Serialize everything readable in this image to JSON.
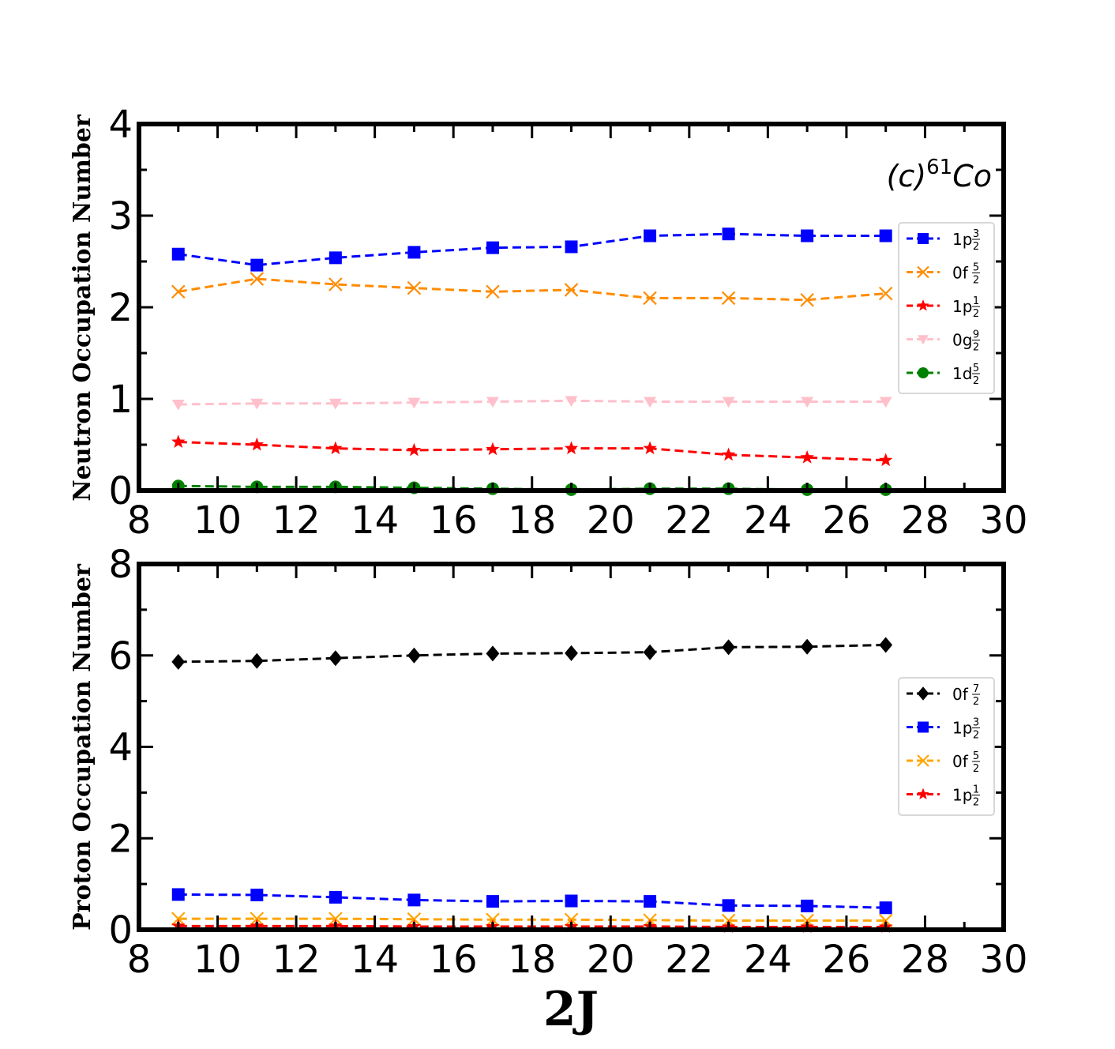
{
  "chart_data": [
    {
      "type": "line",
      "ylabel": "Neutron Occupation Number",
      "xlabel": "",
      "xlim": [
        8,
        30
      ],
      "ylim": [
        0,
        4
      ],
      "xticks": [
        "8",
        "10",
        "12",
        "14",
        "16",
        "18",
        "20",
        "22",
        "24",
        "26",
        "28",
        "30"
      ],
      "yticks": [
        "0",
        "1",
        "2",
        "3",
        "4"
      ],
      "annotation": {
        "label": "(c)",
        "sup": "61",
        "nucleus": "Co"
      },
      "legend_position": "right",
      "x": [
        9,
        11,
        13,
        15,
        17,
        19,
        21,
        23,
        25,
        27
      ],
      "series": [
        {
          "name": "1p 3/2",
          "orbital": "1p",
          "num": "3",
          "den": "2",
          "color": "#0000ff",
          "marker": "square",
          "values": [
            2.58,
            2.46,
            2.54,
            2.6,
            2.65,
            2.66,
            2.78,
            2.8,
            2.78,
            2.78
          ]
        },
        {
          "name": "0f 5/2",
          "orbital": "0f",
          "num": "5",
          "den": "2",
          "color": "#ff8c00",
          "marker": "x",
          "values": [
            2.17,
            2.31,
            2.25,
            2.21,
            2.17,
            2.19,
            2.1,
            2.1,
            2.08,
            2.15
          ]
        },
        {
          "name": "1p 1/2",
          "orbital": "1p",
          "num": "1",
          "den": "2",
          "color": "#ff0000",
          "marker": "star",
          "values": [
            0.53,
            0.5,
            0.46,
            0.44,
            0.45,
            0.46,
            0.46,
            0.39,
            0.36,
            0.33
          ]
        },
        {
          "name": "0g 9/2",
          "orbital": "0g",
          "num": "9",
          "den": "2",
          "color": "#ffc0cb",
          "marker": "triangle-down",
          "values": [
            0.94,
            0.95,
            0.95,
            0.96,
            0.97,
            0.98,
            0.97,
            0.97,
            0.97,
            0.97
          ]
        },
        {
          "name": "1d 5/2",
          "orbital": "1d",
          "num": "5",
          "den": "2",
          "color": "#008000",
          "marker": "circle",
          "values": [
            0.05,
            0.04,
            0.04,
            0.03,
            0.02,
            0.01,
            0.02,
            0.02,
            0.01,
            0.01
          ]
        }
      ]
    },
    {
      "type": "line",
      "ylabel": "Proton Occupation Number",
      "xlabel": "2J",
      "xlim": [
        8,
        30
      ],
      "ylim": [
        0,
        8
      ],
      "xticks": [
        "8",
        "10",
        "12",
        "14",
        "16",
        "18",
        "20",
        "22",
        "24",
        "26",
        "28",
        "30"
      ],
      "yticks": [
        "0",
        "2",
        "4",
        "6",
        "8"
      ],
      "legend_position": "right",
      "x": [
        9,
        11,
        13,
        15,
        17,
        19,
        21,
        23,
        25,
        27
      ],
      "series": [
        {
          "name": "0f 7/2",
          "orbital": "0f",
          "num": "7",
          "den": "2",
          "color": "#000000",
          "marker": "diamond",
          "values": [
            5.86,
            5.88,
            5.94,
            6.0,
            6.04,
            6.05,
            6.07,
            6.18,
            6.19,
            6.23
          ]
        },
        {
          "name": "1p 3/2",
          "orbital": "1p",
          "num": "3",
          "den": "2",
          "color": "#0000ff",
          "marker": "square",
          "values": [
            0.77,
            0.76,
            0.71,
            0.65,
            0.62,
            0.63,
            0.62,
            0.53,
            0.52,
            0.48
          ]
        },
        {
          "name": "0f 5/2",
          "orbital": "0f",
          "num": "5",
          "den": "2",
          "color": "#ffa500",
          "marker": "x",
          "values": [
            0.24,
            0.24,
            0.24,
            0.23,
            0.22,
            0.22,
            0.21,
            0.2,
            0.2,
            0.2
          ]
        },
        {
          "name": "1p 1/2",
          "orbital": "1p",
          "num": "1",
          "den": "2",
          "color": "#ff0000",
          "marker": "star",
          "values": [
            0.08,
            0.08,
            0.08,
            0.07,
            0.07,
            0.07,
            0.07,
            0.06,
            0.06,
            0.06
          ]
        }
      ]
    }
  ]
}
